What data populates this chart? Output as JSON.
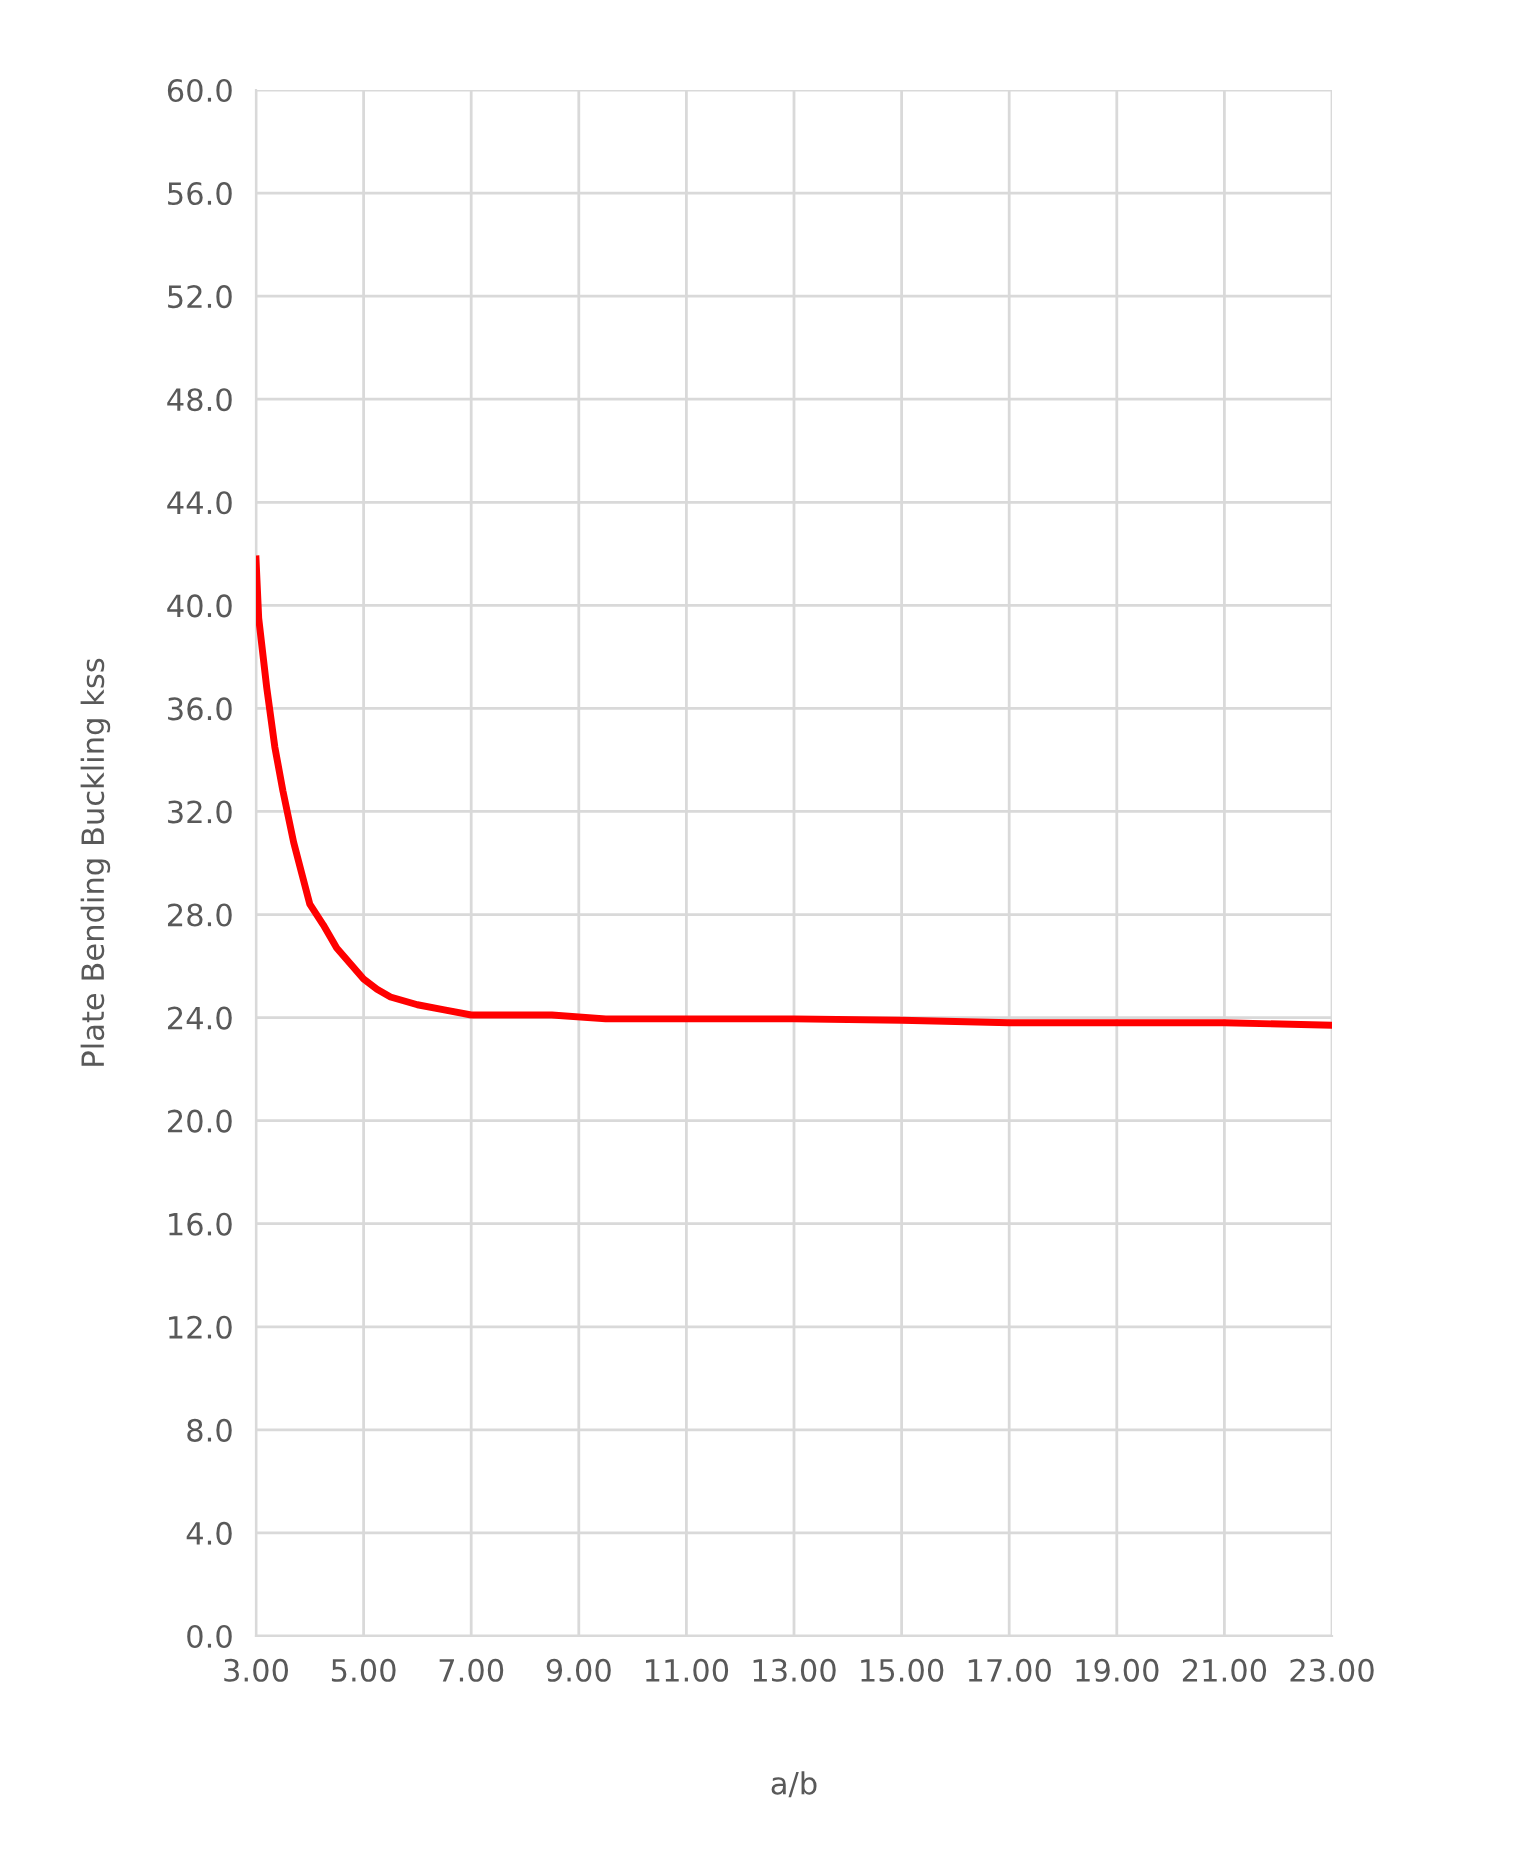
{
  "chart_data": {
    "type": "line",
    "xlabel": "a/b",
    "ylabel": "Plate Bending Buckling kss",
    "series": [
      {
        "color": "#ff0000",
        "x": [
          3.0,
          3.05,
          3.2,
          3.35,
          3.5,
          3.7,
          3.85,
          4.0,
          4.25,
          4.5,
          4.75,
          5.0,
          5.25,
          5.5,
          6.0,
          6.5,
          7.0,
          8.0,
          8.5,
          9.5,
          11.0,
          13.0,
          15.0,
          17.0,
          19.0,
          21.0,
          23.0
        ],
        "values": [
          41.8,
          39.5,
          36.8,
          34.5,
          32.8,
          30.8,
          29.6,
          28.4,
          27.6,
          26.7,
          26.1,
          25.5,
          25.1,
          24.8,
          24.5,
          24.3,
          24.1,
          24.1,
          24.1,
          23.95,
          23.95,
          23.95,
          23.9,
          23.8,
          23.8,
          23.8,
          23.7
        ]
      }
    ],
    "xlim": [
      3,
      23
    ],
    "ylim": [
      0,
      60
    ],
    "xticks": [
      {
        "value": 3,
        "label": "3.00"
      },
      {
        "value": 5,
        "label": "5.00"
      },
      {
        "value": 7,
        "label": "7.00"
      },
      {
        "value": 9,
        "label": "9.00"
      },
      {
        "value": 11,
        "label": "11.00"
      },
      {
        "value": 13,
        "label": "13.00"
      },
      {
        "value": 15,
        "label": "15.00"
      },
      {
        "value": 17,
        "label": "17.00"
      },
      {
        "value": 19,
        "label": "19.00"
      },
      {
        "value": 21,
        "label": "21.00"
      },
      {
        "value": 23,
        "label": "23.00"
      }
    ],
    "yticks": [
      {
        "value": 0,
        "label": "0.0"
      },
      {
        "value": 4,
        "label": "4.0"
      },
      {
        "value": 8,
        "label": "8.0"
      },
      {
        "value": 12,
        "label": "12.0"
      },
      {
        "value": 16,
        "label": "16.0"
      },
      {
        "value": 20,
        "label": "20.0"
      },
      {
        "value": 24,
        "label": "24.0"
      },
      {
        "value": 28,
        "label": "28.0"
      },
      {
        "value": 32,
        "label": "32.0"
      },
      {
        "value": 36,
        "label": "36.0"
      },
      {
        "value": 40,
        "label": "40.0"
      },
      {
        "value": 44,
        "label": "44.0"
      },
      {
        "value": 48,
        "label": "48.0"
      },
      {
        "value": 52,
        "label": "52.0"
      },
      {
        "value": 56,
        "label": "56.0"
      },
      {
        "value": 60,
        "label": "60.0"
      }
    ],
    "grid": true,
    "marker": "none",
    "line_style": "solid"
  }
}
